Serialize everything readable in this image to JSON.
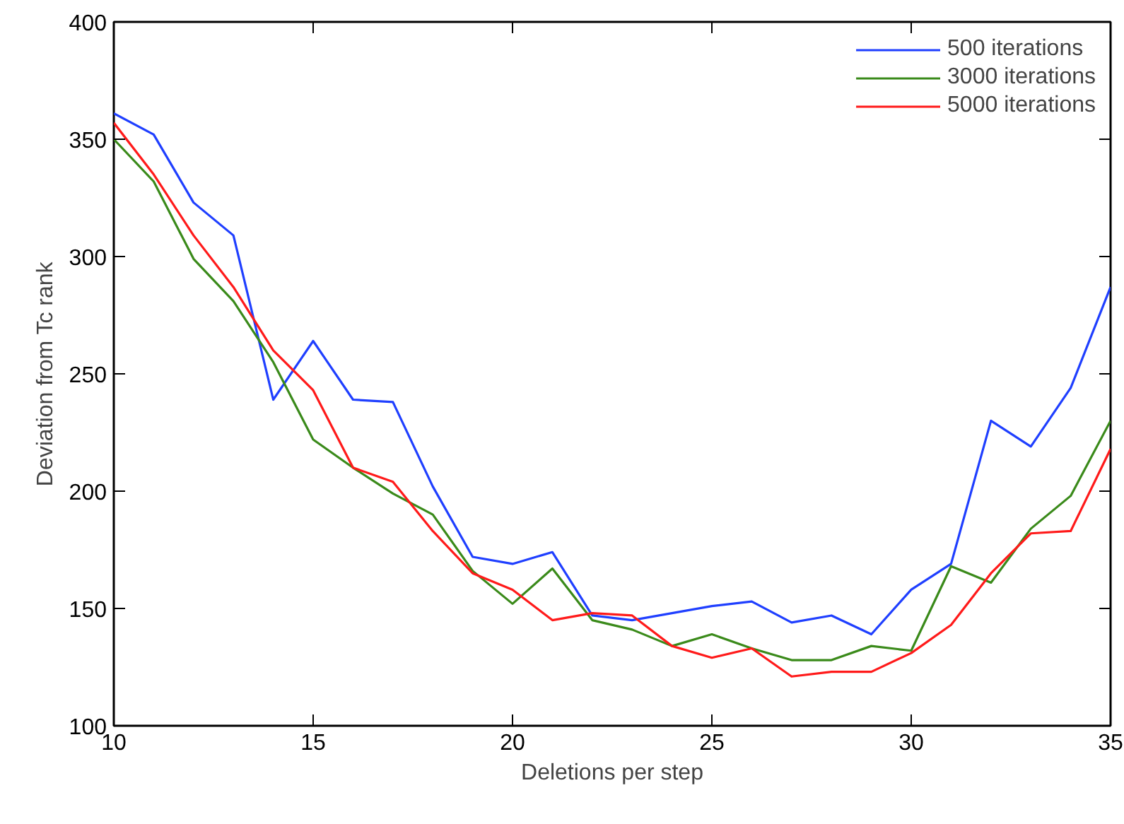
{
  "chart_data": {
    "type": "line",
    "xlabel": "Deletions per step",
    "ylabel": "Deviation from Tc rank",
    "x": [
      10,
      11,
      12,
      13,
      14,
      15,
      16,
      17,
      18,
      19,
      20,
      21,
      22,
      23,
      24,
      25,
      26,
      27,
      28,
      29,
      30,
      31,
      32,
      33,
      34,
      35
    ],
    "series": [
      {
        "name": "500 iterations",
        "color": "#1f3fff",
        "values": [
          361,
          352,
          323,
          309,
          239,
          264,
          239,
          238,
          202,
          172,
          169,
          174,
          147,
          145,
          148,
          151,
          153,
          144,
          147,
          139,
          158,
          169,
          230,
          219,
          244,
          287
        ]
      },
      {
        "name": "3000 iterations",
        "color": "#3a8a1a",
        "values": [
          350,
          332,
          299,
          281,
          255,
          222,
          210,
          199,
          190,
          166,
          152,
          167,
          145,
          141,
          134,
          139,
          133,
          128,
          128,
          134,
          132,
          168,
          161,
          184,
          198,
          230
        ]
      },
      {
        "name": "5000 iterations",
        "color": "#ff1a1a",
        "values": [
          357,
          335,
          309,
          287,
          260,
          243,
          210,
          204,
          183,
          165,
          158,
          145,
          148,
          147,
          134,
          129,
          133,
          121,
          123,
          123,
          131,
          143,
          165,
          182,
          183,
          218
        ]
      }
    ],
    "xlim": [
      10,
      35
    ],
    "xticks": [
      10,
      15,
      20,
      25,
      30,
      35
    ],
    "ylim": [
      100,
      400
    ],
    "yticks": [
      100,
      150,
      200,
      250,
      300,
      350,
      400
    ],
    "grid": false,
    "legend": "top right",
    "line_style": "solid",
    "marker": "none"
  }
}
